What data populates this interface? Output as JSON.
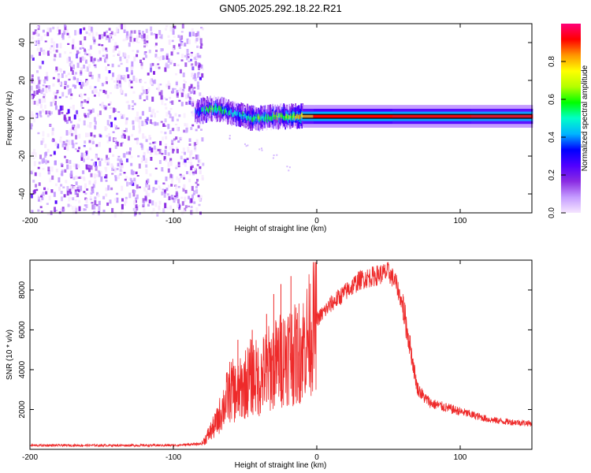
{
  "figure_title": "GN05.2025.292.18.22.R21",
  "chart_data": [
    {
      "type": "heatmap",
      "title": "GN05.2025.292.18.22.R21",
      "xlabel": "Height of straight line (km)",
      "ylabel": "Frequency (Hz)",
      "xlim": [
        -200,
        150
      ],
      "ylim": [
        -50,
        50
      ],
      "xticks": [
        -200,
        -100,
        0,
        100
      ],
      "yticks": [
        -40,
        -20,
        0,
        20,
        40
      ],
      "colorbar": {
        "label": "Normalized spectral amplitude",
        "range": [
          0,
          1
        ],
        "ticks": [
          0.0,
          0.2,
          0.4,
          0.6,
          0.8
        ],
        "colormap": [
          "#f6e6ff",
          "#c59cff",
          "#8a2be2",
          "#5000ff",
          "#0000ff",
          "#00b4ff",
          "#00ffc8",
          "#00ff00",
          "#b4ff00",
          "#ffff00",
          "#ff9600",
          "#ff0000",
          "#ff0078"
        ]
      },
      "noise_region_x": [
        -200,
        -80
      ],
      "signal_ridge": {
        "x": [
          -85,
          -80,
          -75,
          -70,
          -65,
          -60,
          -55,
          -50,
          -45,
          -40,
          -35,
          -30,
          -25,
          -20,
          -15,
          -10,
          0,
          50,
          100,
          150
        ],
        "frequency": [
          3,
          4,
          5,
          5,
          4,
          3,
          2,
          1,
          0,
          0,
          0,
          1,
          1,
          1,
          1,
          1,
          1,
          1,
          1,
          1
        ],
        "amplitude": [
          0.3,
          0.5,
          0.6,
          0.55,
          0.5,
          0.45,
          0.45,
          0.5,
          0.5,
          0.55,
          0.55,
          0.6,
          0.6,
          0.6,
          0.7,
          0.9,
          1.0,
          1.0,
          1.0,
          1.0
        ]
      },
      "faint_trail": {
        "x": [
          -60,
          -50,
          -40,
          -30,
          -20
        ],
        "frequency": [
          -10,
          -13,
          -16,
          -20,
          -26
        ]
      }
    },
    {
      "type": "line",
      "title": "",
      "xlabel": "Height of straight line (km)",
      "ylabel": "SNR (10 * v/v)",
      "xlim": [
        -200,
        150
      ],
      "ylim": [
        0,
        9500
      ],
      "xticks": [
        -200,
        -100,
        0,
        100
      ],
      "yticks": [
        2000,
        4000,
        6000,
        8000
      ],
      "series": [
        {
          "name": "SNR",
          "color": "#ee2a2a",
          "x": [
            -200,
            -150,
            -100,
            -80,
            -75,
            -70,
            -65,
            -60,
            -55,
            -50,
            -45,
            -40,
            -35,
            -30,
            -25,
            -20,
            -15,
            -10,
            -5,
            0,
            10,
            20,
            30,
            40,
            50,
            55,
            60,
            65,
            70,
            75,
            80,
            90,
            100,
            110,
            120,
            130,
            140,
            150
          ],
          "y": [
            200,
            200,
            200,
            280,
            800,
            1300,
            2200,
            3000,
            2800,
            3300,
            3700,
            3500,
            4000,
            4200,
            4500,
            4900,
            4700,
            5100,
            5800,
            6500,
            7300,
            7900,
            8500,
            8700,
            8900,
            8400,
            7200,
            5200,
            3100,
            2600,
            2300,
            2100,
            1900,
            1700,
            1500,
            1400,
            1350,
            1300
          ]
        }
      ],
      "spikes": [
        {
          "x": -55,
          "y": 5500
        },
        {
          "x": -45,
          "y": 6000
        },
        {
          "x": -35,
          "y": 6800
        },
        {
          "x": -30,
          "y": 7800
        },
        {
          "x": -25,
          "y": 8300
        },
        {
          "x": -18,
          "y": 8700
        }
      ]
    }
  ]
}
